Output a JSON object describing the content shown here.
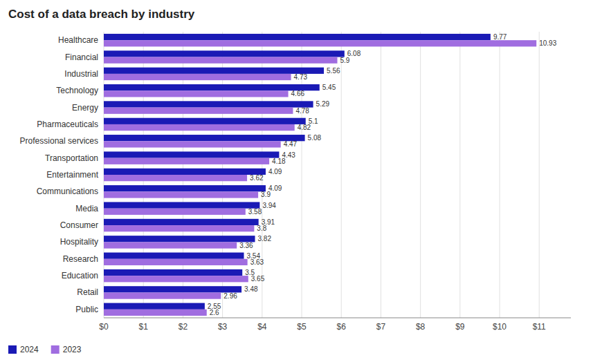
{
  "chart_data": {
    "type": "bar",
    "orientation": "horizontal",
    "title": "Cost of a data breach by industry",
    "categories": [
      "Healthcare",
      "Financial",
      "Industrial",
      "Technology",
      "Energy",
      "Pharmaceuticals",
      "Professional services",
      "Transportation",
      "Entertainment",
      "Communications",
      "Media",
      "Consumer",
      "Hospitality",
      "Research",
      "Education",
      "Retail",
      "Public"
    ],
    "series": [
      {
        "name": "2024",
        "color": "#1a1ab5",
        "values": [
          9.77,
          6.08,
          5.56,
          5.45,
          5.29,
          5.1,
          5.08,
          4.43,
          4.09,
          4.09,
          3.94,
          3.91,
          3.82,
          3.54,
          3.5,
          3.48,
          2.55
        ]
      },
      {
        "name": "2023",
        "color": "#a06de0",
        "values": [
          10.93,
          5.9,
          4.73,
          4.66,
          4.78,
          4.82,
          4.47,
          4.18,
          3.62,
          3.9,
          3.58,
          3.8,
          3.36,
          3.63,
          3.65,
          2.96,
          2.6
        ]
      }
    ],
    "xlim": [
      0,
      11.8
    ],
    "xticks": [
      {
        "value": 0,
        "label": "$0"
      },
      {
        "value": 1,
        "label": "$1"
      },
      {
        "value": 2,
        "label": "$2"
      },
      {
        "value": 3,
        "label": "$3"
      },
      {
        "value": 4,
        "label": "$4"
      },
      {
        "value": 5,
        "label": "$5"
      },
      {
        "value": 6,
        "label": "$6"
      },
      {
        "value": 7,
        "label": "$7"
      },
      {
        "value": 8,
        "label": "$8"
      },
      {
        "value": 9,
        "label": "$9"
      },
      {
        "value": 10,
        "label": "$10"
      },
      {
        "value": 11,
        "label": "$11"
      }
    ],
    "grid": true,
    "legend": "lower left",
    "data_labels": true
  }
}
